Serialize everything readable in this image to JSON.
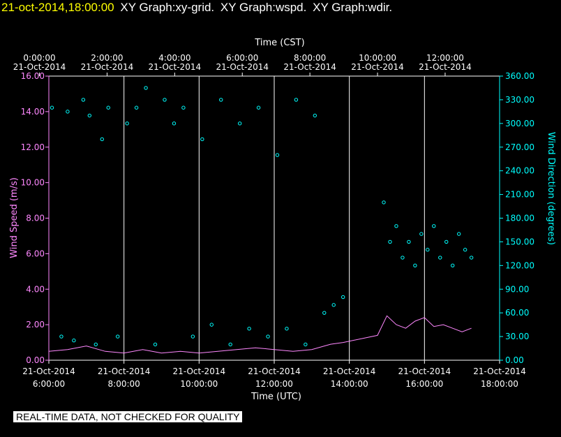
{
  "header": {
    "timestamp": "21-oct-2014,18:00:00",
    "graphs": [
      "XY Graph:xy-grid.",
      "XY Graph:wspd.",
      "XY Graph:wdir."
    ]
  },
  "colors": {
    "background": "#000000",
    "axes": "#ffffff",
    "speed": "#ff88ff",
    "direction": "#00ffff",
    "timestamp": "#ffff00",
    "grid": "#ffffff"
  },
  "banner": "REAL-TIME DATA, NOT CHECKED FOR QUALITY",
  "chart_data": {
    "type": "line",
    "top_axis": {
      "label": "Time (CST)",
      "ticks": [
        {
          "time": "0:00:00",
          "date": "21-Oct-2014"
        },
        {
          "time": "2:00:00",
          "date": "21-Oct-2014"
        },
        {
          "time": "4:00:00",
          "date": "21-Oct-2014"
        },
        {
          "time": "6:00:00",
          "date": "21-Oct-2014"
        },
        {
          "time": "8:00:00",
          "date": "21-Oct-2014"
        },
        {
          "time": "10:00:00",
          "date": "21-Oct-2014"
        },
        {
          "time": "12:00:00",
          "date": "21-Oct-2014"
        }
      ]
    },
    "bottom_axis": {
      "label": "Time (UTC)",
      "xlim": [
        "2014-10-21T06:00:00",
        "2014-10-21T18:00:00"
      ],
      "ticks": [
        {
          "time": "6:00:00",
          "date": "21-Oct-2014"
        },
        {
          "time": "8:00:00",
          "date": "21-Oct-2014"
        },
        {
          "time": "10:00:00",
          "date": "21-Oct-2014"
        },
        {
          "time": "12:00:00",
          "date": "21-Oct-2014"
        },
        {
          "time": "14:00:00",
          "date": "21-Oct-2014"
        },
        {
          "time": "16:00:00",
          "date": "21-Oct-2014"
        },
        {
          "time": "18:00:00",
          "date": "21-Oct-2014"
        }
      ]
    },
    "left_axis": {
      "label": "Wind Speed (m/s)",
      "ylim": [
        0,
        16
      ],
      "ticks": [
        "0.00",
        "2.00",
        "4.00",
        "6.00",
        "8.00",
        "10.00",
        "12.00",
        "14.00",
        "16.00"
      ]
    },
    "right_axis": {
      "label": "Wind Direction (degrees)",
      "ylim": [
        0,
        360
      ],
      "ticks": [
        "0.00",
        "30.00",
        "60.00",
        "90.00",
        "120.00",
        "150.00",
        "180.00",
        "210.00",
        "240.00",
        "270.00",
        "300.00",
        "330.00",
        "360.00"
      ]
    },
    "grid": "vertical lines at every 2 hours",
    "series": [
      {
        "name": "Wind Speed (m/s)",
        "type": "line",
        "axis": "left",
        "x": [
          "2014-10-21T06:00:00",
          "2014-10-21T06:30:00",
          "2014-10-21T07:00:00",
          "2014-10-21T07:30:00",
          "2014-10-21T08:00:00",
          "2014-10-21T08:30:00",
          "2014-10-21T09:00:00",
          "2014-10-21T09:30:00",
          "2014-10-21T10:00:00",
          "2014-10-21T10:30:00",
          "2014-10-21T11:00:00",
          "2014-10-21T11:30:00",
          "2014-10-21T12:00:00",
          "2014-10-21T12:30:00",
          "2014-10-21T13:00:00",
          "2014-10-21T13:30:00",
          "2014-10-21T13:50:00",
          "2014-10-21T14:45:00",
          "2014-10-21T15:00:00",
          "2014-10-21T15:15:00",
          "2014-10-21T15:30:00",
          "2014-10-21T15:45:00",
          "2014-10-21T16:00:00",
          "2014-10-21T16:15:00",
          "2014-10-21T16:30:00",
          "2014-10-21T16:45:00",
          "2014-10-21T17:00:00",
          "2014-10-21T17:15:00"
        ],
        "values": [
          0.5,
          0.6,
          0.8,
          0.5,
          0.4,
          0.6,
          0.4,
          0.5,
          0.4,
          0.5,
          0.6,
          0.7,
          0.6,
          0.5,
          0.6,
          0.9,
          1.0,
          1.4,
          2.5,
          2.0,
          1.8,
          2.2,
          2.4,
          1.9,
          2.0,
          1.8,
          1.6,
          1.8
        ]
      },
      {
        "name": "Wind Direction (degrees)",
        "type": "scatter",
        "axis": "right",
        "x": [
          "2014-10-21T06:05:00",
          "2014-10-21T06:20:00",
          "2014-10-21T06:30:00",
          "2014-10-21T06:40:00",
          "2014-10-21T06:55:00",
          "2014-10-21T07:05:00",
          "2014-10-21T07:15:00",
          "2014-10-21T07:25:00",
          "2014-10-21T07:35:00",
          "2014-10-21T07:50:00",
          "2014-10-21T08:05:00",
          "2014-10-21T08:20:00",
          "2014-10-21T08:35:00",
          "2014-10-21T08:50:00",
          "2014-10-21T09:05:00",
          "2014-10-21T09:20:00",
          "2014-10-21T09:35:00",
          "2014-10-21T09:50:00",
          "2014-10-21T10:05:00",
          "2014-10-21T10:20:00",
          "2014-10-21T10:35:00",
          "2014-10-21T10:50:00",
          "2014-10-21T11:05:00",
          "2014-10-21T11:20:00",
          "2014-10-21T11:35:00",
          "2014-10-21T11:50:00",
          "2014-10-21T12:05:00",
          "2014-10-21T12:20:00",
          "2014-10-21T12:35:00",
          "2014-10-21T12:50:00",
          "2014-10-21T13:05:00",
          "2014-10-21T13:20:00",
          "2014-10-21T13:35:00",
          "2014-10-21T13:50:00",
          "2014-10-21T14:55:00",
          "2014-10-21T15:05:00",
          "2014-10-21T15:15:00",
          "2014-10-21T15:25:00",
          "2014-10-21T15:35:00",
          "2014-10-21T15:45:00",
          "2014-10-21T15:55:00",
          "2014-10-21T16:05:00",
          "2014-10-21T16:15:00",
          "2014-10-21T16:25:00",
          "2014-10-21T16:35:00",
          "2014-10-21T16:45:00",
          "2014-10-21T16:55:00",
          "2014-10-21T17:05:00",
          "2014-10-21T17:15:00"
        ],
        "values": [
          320,
          30,
          315,
          25,
          330,
          310,
          20,
          280,
          320,
          30,
          300,
          320,
          345,
          20,
          330,
          300,
          320,
          30,
          280,
          45,
          330,
          20,
          300,
          40,
          320,
          30,
          260,
          40,
          330,
          20,
          310,
          60,
          70,
          80,
          200,
          150,
          170,
          130,
          150,
          120,
          160,
          140,
          170,
          130,
          150,
          120,
          160,
          140,
          130
        ]
      }
    ]
  }
}
